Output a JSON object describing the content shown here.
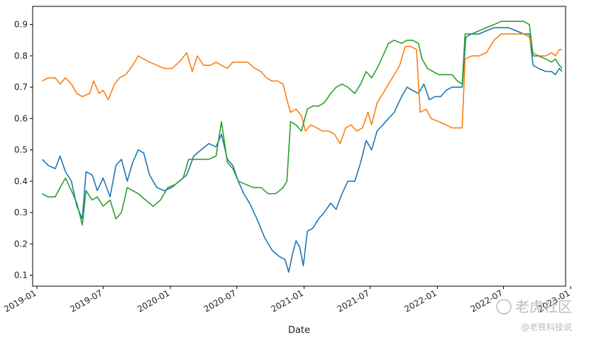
{
  "chart_data": {
    "type": "line",
    "xlabel": "Date",
    "ylabel": "",
    "title": "",
    "x_range": [
      "2018-12-20",
      "2022-12-18"
    ],
    "ylim": [
      0.065,
      0.958
    ],
    "y_ticks": [
      0.1,
      0.2,
      0.3,
      0.4,
      0.5,
      0.6,
      0.7,
      0.8,
      0.9
    ],
    "x_ticks": [
      {
        "date": "2019-01-01",
        "label": "2019-01"
      },
      {
        "date": "2019-07-01",
        "label": "2019-07"
      },
      {
        "date": "2020-01-01",
        "label": "2020-01"
      },
      {
        "date": "2020-07-01",
        "label": "2020-07"
      },
      {
        "date": "2021-01-01",
        "label": "2021-01"
      },
      {
        "date": "2021-07-01",
        "label": "2021-07"
      },
      {
        "date": "2022-01-01",
        "label": "2022-01"
      },
      {
        "date": "2022-07-01",
        "label": "2022-07"
      },
      {
        "date": "2023-01-01",
        "label": "2023-01"
      }
    ],
    "grid": false,
    "legend": "none",
    "series": [
      {
        "color": "#1f77b4",
        "points": [
          [
            "2019-01-15",
            0.47
          ],
          [
            "2019-02-01",
            0.45
          ],
          [
            "2019-02-20",
            0.44
          ],
          [
            "2019-03-05",
            0.48
          ],
          [
            "2019-03-20",
            0.43
          ],
          [
            "2019-04-05",
            0.4
          ],
          [
            "2019-04-20",
            0.32
          ],
          [
            "2019-05-05",
            0.28
          ],
          [
            "2019-05-15",
            0.43
          ],
          [
            "2019-06-01",
            0.42
          ],
          [
            "2019-06-15",
            0.37
          ],
          [
            "2019-07-01",
            0.41
          ],
          [
            "2019-07-20",
            0.35
          ],
          [
            "2019-08-05",
            0.45
          ],
          [
            "2019-08-20",
            0.47
          ],
          [
            "2019-09-05",
            0.4
          ],
          [
            "2019-09-20",
            0.46
          ],
          [
            "2019-10-05",
            0.5
          ],
          [
            "2019-10-20",
            0.49
          ],
          [
            "2019-11-05",
            0.42
          ],
          [
            "2019-11-25",
            0.38
          ],
          [
            "2019-12-15",
            0.37
          ],
          [
            "2020-01-05",
            0.38
          ],
          [
            "2020-01-25",
            0.4
          ],
          [
            "2020-02-15",
            0.42
          ],
          [
            "2020-03-05",
            0.48
          ],
          [
            "2020-03-25",
            0.5
          ],
          [
            "2020-04-15",
            0.52
          ],
          [
            "2020-05-05",
            0.51
          ],
          [
            "2020-05-20",
            0.55
          ],
          [
            "2020-06-05",
            0.47
          ],
          [
            "2020-06-20",
            0.45
          ],
          [
            "2020-07-05",
            0.4
          ],
          [
            "2020-07-20",
            0.36
          ],
          [
            "2020-08-05",
            0.33
          ],
          [
            "2020-08-25",
            0.28
          ],
          [
            "2020-09-15",
            0.22
          ],
          [
            "2020-10-05",
            0.18
          ],
          [
            "2020-10-25",
            0.16
          ],
          [
            "2020-11-10",
            0.15
          ],
          [
            "2020-11-20",
            0.11
          ],
          [
            "2020-12-01",
            0.17
          ],
          [
            "2020-12-10",
            0.21
          ],
          [
            "2020-12-20",
            0.19
          ],
          [
            "2020-12-30",
            0.13
          ],
          [
            "2021-01-10",
            0.24
          ],
          [
            "2021-01-25",
            0.25
          ],
          [
            "2021-02-10",
            0.28
          ],
          [
            "2021-02-25",
            0.3
          ],
          [
            "2021-03-15",
            0.33
          ],
          [
            "2021-03-30",
            0.31
          ],
          [
            "2021-04-15",
            0.36
          ],
          [
            "2021-05-01",
            0.4
          ],
          [
            "2021-05-20",
            0.4
          ],
          [
            "2021-06-05",
            0.46
          ],
          [
            "2021-06-20",
            0.53
          ],
          [
            "2021-07-05",
            0.5
          ],
          [
            "2021-07-20",
            0.56
          ],
          [
            "2021-08-05",
            0.58
          ],
          [
            "2021-08-20",
            0.6
          ],
          [
            "2021-09-05",
            0.62
          ],
          [
            "2021-09-25",
            0.67
          ],
          [
            "2021-10-10",
            0.7
          ],
          [
            "2021-10-25",
            0.69
          ],
          [
            "2021-11-10",
            0.68
          ],
          [
            "2021-11-25",
            0.71
          ],
          [
            "2021-12-10",
            0.66
          ],
          [
            "2021-12-25",
            0.67
          ],
          [
            "2022-01-10",
            0.67
          ],
          [
            "2022-01-25",
            0.69
          ],
          [
            "2022-02-10",
            0.7
          ],
          [
            "2022-02-25",
            0.7
          ],
          [
            "2022-03-10",
            0.7
          ],
          [
            "2022-03-20",
            0.86
          ],
          [
            "2022-04-05",
            0.87
          ],
          [
            "2022-04-25",
            0.87
          ],
          [
            "2022-05-15",
            0.88
          ],
          [
            "2022-06-05",
            0.89
          ],
          [
            "2022-06-25",
            0.89
          ],
          [
            "2022-07-15",
            0.89
          ],
          [
            "2022-08-05",
            0.88
          ],
          [
            "2022-08-25",
            0.87
          ],
          [
            "2022-09-10",
            0.87
          ],
          [
            "2022-09-20",
            0.77
          ],
          [
            "2022-10-05",
            0.76
          ],
          [
            "2022-10-25",
            0.75
          ],
          [
            "2022-11-10",
            0.75
          ],
          [
            "2022-11-20",
            0.74
          ],
          [
            "2022-12-01",
            0.76
          ],
          [
            "2022-12-08",
            0.75
          ]
        ]
      },
      {
        "color": "#ff7f0e",
        "points": [
          [
            "2019-01-15",
            0.72
          ],
          [
            "2019-02-01",
            0.73
          ],
          [
            "2019-02-20",
            0.73
          ],
          [
            "2019-03-05",
            0.71
          ],
          [
            "2019-03-20",
            0.73
          ],
          [
            "2019-04-05",
            0.71
          ],
          [
            "2019-04-20",
            0.68
          ],
          [
            "2019-05-05",
            0.67
          ],
          [
            "2019-05-25",
            0.68
          ],
          [
            "2019-06-05",
            0.72
          ],
          [
            "2019-06-20",
            0.68
          ],
          [
            "2019-07-01",
            0.69
          ],
          [
            "2019-07-15",
            0.66
          ],
          [
            "2019-08-01",
            0.71
          ],
          [
            "2019-08-15",
            0.73
          ],
          [
            "2019-09-01",
            0.74
          ],
          [
            "2019-09-20",
            0.77
          ],
          [
            "2019-10-05",
            0.8
          ],
          [
            "2019-10-20",
            0.79
          ],
          [
            "2019-11-05",
            0.78
          ],
          [
            "2019-11-25",
            0.77
          ],
          [
            "2019-12-15",
            0.76
          ],
          [
            "2020-01-05",
            0.76
          ],
          [
            "2020-01-25",
            0.78
          ],
          [
            "2020-02-15",
            0.81
          ],
          [
            "2020-03-01",
            0.75
          ],
          [
            "2020-03-15",
            0.8
          ],
          [
            "2020-04-01",
            0.77
          ],
          [
            "2020-04-20",
            0.77
          ],
          [
            "2020-05-05",
            0.78
          ],
          [
            "2020-05-20",
            0.77
          ],
          [
            "2020-06-05",
            0.76
          ],
          [
            "2020-06-20",
            0.78
          ],
          [
            "2020-07-10",
            0.78
          ],
          [
            "2020-07-30",
            0.78
          ],
          [
            "2020-08-20",
            0.76
          ],
          [
            "2020-09-05",
            0.75
          ],
          [
            "2020-09-20",
            0.73
          ],
          [
            "2020-10-05",
            0.72
          ],
          [
            "2020-10-20",
            0.72
          ],
          [
            "2020-11-05",
            0.71
          ],
          [
            "2020-11-15",
            0.66
          ],
          [
            "2020-11-25",
            0.62
          ],
          [
            "2020-12-10",
            0.63
          ],
          [
            "2020-12-25",
            0.61
          ],
          [
            "2021-01-05",
            0.56
          ],
          [
            "2021-01-20",
            0.58
          ],
          [
            "2021-02-05",
            0.57
          ],
          [
            "2021-02-20",
            0.56
          ],
          [
            "2021-03-10",
            0.56
          ],
          [
            "2021-03-25",
            0.55
          ],
          [
            "2021-04-10",
            0.52
          ],
          [
            "2021-04-25",
            0.57
          ],
          [
            "2021-05-10",
            0.58
          ],
          [
            "2021-05-25",
            0.56
          ],
          [
            "2021-06-10",
            0.57
          ],
          [
            "2021-06-25",
            0.62
          ],
          [
            "2021-07-05",
            0.58
          ],
          [
            "2021-07-20",
            0.65
          ],
          [
            "2021-08-05",
            0.68
          ],
          [
            "2021-08-20",
            0.71
          ],
          [
            "2021-09-05",
            0.74
          ],
          [
            "2021-09-20",
            0.77
          ],
          [
            "2021-10-05",
            0.83
          ],
          [
            "2021-10-20",
            0.83
          ],
          [
            "2021-11-05",
            0.82
          ],
          [
            "2021-11-15",
            0.62
          ],
          [
            "2021-12-01",
            0.63
          ],
          [
            "2021-12-15",
            0.6
          ],
          [
            "2022-01-05",
            0.59
          ],
          [
            "2022-01-25",
            0.58
          ],
          [
            "2022-02-10",
            0.57
          ],
          [
            "2022-02-25",
            0.57
          ],
          [
            "2022-03-10",
            0.57
          ],
          [
            "2022-03-18",
            0.79
          ],
          [
            "2022-04-05",
            0.8
          ],
          [
            "2022-04-25",
            0.8
          ],
          [
            "2022-05-15",
            0.81
          ],
          [
            "2022-06-05",
            0.85
          ],
          [
            "2022-06-25",
            0.87
          ],
          [
            "2022-07-15",
            0.87
          ],
          [
            "2022-08-05",
            0.87
          ],
          [
            "2022-08-25",
            0.87
          ],
          [
            "2022-09-10",
            0.86
          ],
          [
            "2022-09-20",
            0.81
          ],
          [
            "2022-10-05",
            0.8
          ],
          [
            "2022-10-25",
            0.8
          ],
          [
            "2022-11-10",
            0.81
          ],
          [
            "2022-11-20",
            0.8
          ],
          [
            "2022-12-01",
            0.82
          ],
          [
            "2022-12-08",
            0.82
          ]
        ]
      },
      {
        "color": "#2ca02c",
        "points": [
          [
            "2019-01-15",
            0.36
          ],
          [
            "2019-02-01",
            0.35
          ],
          [
            "2019-02-20",
            0.35
          ],
          [
            "2019-03-05",
            0.38
          ],
          [
            "2019-03-20",
            0.41
          ],
          [
            "2019-04-05",
            0.37
          ],
          [
            "2019-04-20",
            0.33
          ],
          [
            "2019-05-05",
            0.26
          ],
          [
            "2019-05-15",
            0.37
          ],
          [
            "2019-06-01",
            0.34
          ],
          [
            "2019-06-15",
            0.35
          ],
          [
            "2019-07-01",
            0.32
          ],
          [
            "2019-07-20",
            0.34
          ],
          [
            "2019-08-05",
            0.28
          ],
          [
            "2019-08-20",
            0.3
          ],
          [
            "2019-09-05",
            0.38
          ],
          [
            "2019-09-20",
            0.37
          ],
          [
            "2019-10-05",
            0.36
          ],
          [
            "2019-10-25",
            0.34
          ],
          [
            "2019-11-15",
            0.32
          ],
          [
            "2019-12-05",
            0.34
          ],
          [
            "2019-12-25",
            0.38
          ],
          [
            "2020-01-15",
            0.39
          ],
          [
            "2020-02-05",
            0.41
          ],
          [
            "2020-02-20",
            0.47
          ],
          [
            "2020-03-10",
            0.47
          ],
          [
            "2020-03-25",
            0.47
          ],
          [
            "2020-04-15",
            0.47
          ],
          [
            "2020-05-05",
            0.48
          ],
          [
            "2020-05-20",
            0.59
          ],
          [
            "2020-06-05",
            0.46
          ],
          [
            "2020-06-20",
            0.44
          ],
          [
            "2020-07-05",
            0.4
          ],
          [
            "2020-07-25",
            0.39
          ],
          [
            "2020-08-15",
            0.38
          ],
          [
            "2020-09-05",
            0.38
          ],
          [
            "2020-09-25",
            0.36
          ],
          [
            "2020-10-15",
            0.36
          ],
          [
            "2020-11-05",
            0.38
          ],
          [
            "2020-11-15",
            0.4
          ],
          [
            "2020-11-25",
            0.59
          ],
          [
            "2020-12-10",
            0.58
          ],
          [
            "2020-12-25",
            0.56
          ],
          [
            "2021-01-10",
            0.63
          ],
          [
            "2021-01-25",
            0.64
          ],
          [
            "2021-02-10",
            0.64
          ],
          [
            "2021-02-25",
            0.65
          ],
          [
            "2021-03-15",
            0.68
          ],
          [
            "2021-03-30",
            0.7
          ],
          [
            "2021-04-15",
            0.71
          ],
          [
            "2021-05-01",
            0.7
          ],
          [
            "2021-05-20",
            0.68
          ],
          [
            "2021-06-05",
            0.71
          ],
          [
            "2021-06-20",
            0.75
          ],
          [
            "2021-07-05",
            0.73
          ],
          [
            "2021-07-20",
            0.76
          ],
          [
            "2021-08-05",
            0.8
          ],
          [
            "2021-08-20",
            0.84
          ],
          [
            "2021-09-05",
            0.85
          ],
          [
            "2021-09-25",
            0.84
          ],
          [
            "2021-10-10",
            0.85
          ],
          [
            "2021-10-25",
            0.85
          ],
          [
            "2021-11-10",
            0.84
          ],
          [
            "2021-11-20",
            0.79
          ],
          [
            "2021-12-05",
            0.76
          ],
          [
            "2021-12-20",
            0.75
          ],
          [
            "2022-01-05",
            0.74
          ],
          [
            "2022-01-25",
            0.74
          ],
          [
            "2022-02-10",
            0.74
          ],
          [
            "2022-02-25",
            0.72
          ],
          [
            "2022-03-10",
            0.71
          ],
          [
            "2022-03-18",
            0.87
          ],
          [
            "2022-04-05",
            0.87
          ],
          [
            "2022-04-25",
            0.88
          ],
          [
            "2022-05-15",
            0.89
          ],
          [
            "2022-06-05",
            0.9
          ],
          [
            "2022-06-25",
            0.91
          ],
          [
            "2022-07-15",
            0.91
          ],
          [
            "2022-08-05",
            0.91
          ],
          [
            "2022-08-25",
            0.91
          ],
          [
            "2022-09-10",
            0.9
          ],
          [
            "2022-09-20",
            0.8
          ],
          [
            "2022-10-05",
            0.8
          ],
          [
            "2022-10-25",
            0.79
          ],
          [
            "2022-11-10",
            0.78
          ],
          [
            "2022-11-20",
            0.79
          ],
          [
            "2022-12-01",
            0.77
          ],
          [
            "2022-12-08",
            0.76
          ]
        ]
      }
    ]
  },
  "watermark": {
    "main": "老虎社区",
    "sub": "@老铁科技说"
  }
}
